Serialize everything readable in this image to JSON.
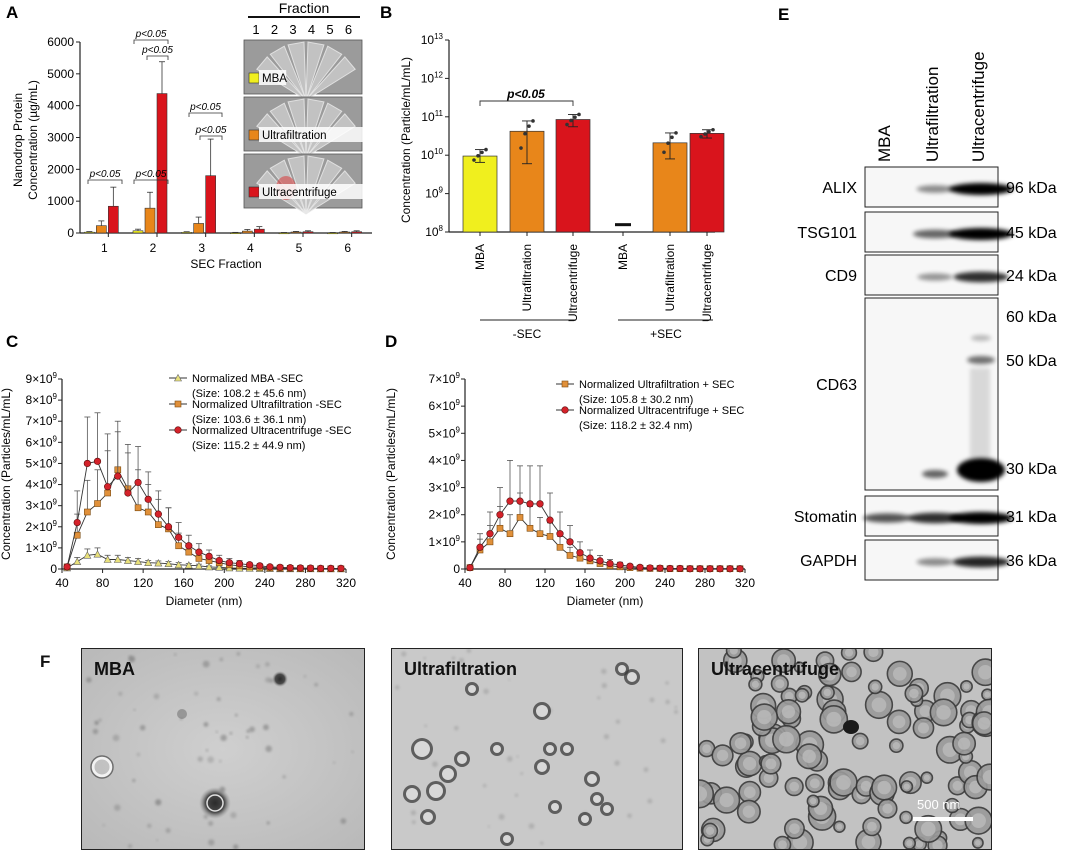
{
  "panels": {
    "A": "A",
    "B": "B",
    "C": "C",
    "D": "D",
    "E": "E",
    "F": "F"
  },
  "colors": {
    "mba": "#f0ef1e",
    "uf": "#e8861a",
    "uc": "#d9141c",
    "mba_line": "#e6e26a",
    "uf_line": "#d98a2a",
    "uc_line": "#cc1f25"
  },
  "chart_data": [
    {
      "id": "A",
      "type": "bar",
      "title": "",
      "xlabel": "SEC Fraction",
      "ylabel": "Nanodrop Protein Concentration (µg/mL)",
      "ylabel_lines": [
        "Nanodrop Protein",
        "Concentration (µg/mL)"
      ],
      "ylim": [
        0,
        6000
      ],
      "yticks": [
        "0",
        "1000",
        "2000",
        "3000",
        "4000",
        "5000",
        "6000"
      ],
      "categories": [
        "1",
        "2",
        "3",
        "4",
        "5",
        "6"
      ],
      "series": [
        {
          "name": "MBA",
          "values": [
            25,
            70,
            20,
            10,
            8,
            8
          ],
          "errors": [
            20,
            50,
            20,
            10,
            8,
            8
          ]
        },
        {
          "name": "Ultrafiltration",
          "values": [
            230,
            780,
            300,
            60,
            30,
            30
          ],
          "errors": [
            150,
            500,
            200,
            50,
            20,
            20
          ]
        },
        {
          "name": "Ultracentrifuge",
          "values": [
            840,
            4380,
            1800,
            120,
            40,
            40
          ],
          "errors": [
            600,
            1000,
            1150,
            80,
            30,
            30
          ]
        }
      ],
      "annotations": [
        "p<0.05",
        "p<0.05",
        "p<0.05",
        "p<0.05",
        "p<0.05",
        "p<0.05"
      ],
      "inset": {
        "title": "Fraction",
        "fraction_labels": [
          "1",
          "2",
          "3",
          "4",
          "5",
          "6"
        ],
        "rows": [
          "MBA",
          "Ultrafiltration",
          "Ultracentrifuge"
        ]
      }
    },
    {
      "id": "B",
      "type": "bar",
      "ylabel": "Concentration (Particle/mL/mL)",
      "scale": "log",
      "ylim": [
        100000000.0,
        10000000000000.0
      ],
      "yticks": [
        {
          "base": "10",
          "exp": "8"
        },
        {
          "base": "10",
          "exp": "9"
        },
        {
          "base": "10",
          "exp": "10"
        },
        {
          "base": "10",
          "exp": "11"
        },
        {
          "base": "10",
          "exp": "12"
        },
        {
          "base": "10",
          "exp": "13"
        }
      ],
      "categories": [
        "MBA",
        "Ultrafiltration",
        "Ultracentrifuge",
        "MBA",
        "Ultrafiltration",
        "Ultracentrifuge"
      ],
      "groups": [
        "-SEC",
        "+SEC"
      ],
      "values": [
        9500000000.0,
        42000000000.0,
        85000000000.0,
        160000000.0,
        21000000000.0,
        37000000000.0
      ],
      "errors_low": [
        6500000000.0,
        6000000000.0,
        55000000000.0,
        160000000.0,
        8000000000.0,
        28000000000.0
      ],
      "errors_high": [
        14000000000.0,
        78000000000.0,
        115000000000.0,
        160000000.0,
        38000000000.0,
        46000000000.0
      ],
      "annotations": [
        "p<0.05"
      ]
    },
    {
      "id": "C",
      "type": "line",
      "xlabel": "Diameter (nm)",
      "ylabel": "Concentration (Particles/mL/mL)",
      "xlim": [
        40,
        320
      ],
      "ylim": [
        0,
        9000000000.0
      ],
      "xticks": [
        "40",
        "80",
        "120",
        "160",
        "200",
        "240",
        "280",
        "320"
      ],
      "yticks": [
        {
          "base": "0",
          "exp": ""
        },
        {
          "base": "1×10",
          "exp": "9"
        },
        {
          "base": "2×10",
          "exp": "9"
        },
        {
          "base": "3×10",
          "exp": "9"
        },
        {
          "base": "4×10",
          "exp": "9"
        },
        {
          "base": "5×10",
          "exp": "9"
        },
        {
          "base": "6×10",
          "exp": "9"
        },
        {
          "base": "7×10",
          "exp": "9"
        },
        {
          "base": "8×10",
          "exp": "9"
        },
        {
          "base": "9×10",
          "exp": "9"
        }
      ],
      "x": [
        45,
        55,
        65,
        75,
        85,
        95,
        105,
        115,
        125,
        135,
        145,
        155,
        165,
        175,
        185,
        195,
        205,
        215,
        225,
        235,
        245,
        255,
        265,
        275,
        285,
        295,
        305,
        315
      ],
      "series": [
        {
          "name": "Normalized MBA -SEC",
          "note": "(Size: 108.2 ± 45.6 nm)",
          "values": [
            50000000.0,
            350000000.0,
            650000000.0,
            700000000.0,
            450000000.0,
            450000000.0,
            400000000.0,
            350000000.0,
            300000000.0,
            280000000.0,
            250000000.0,
            200000000.0,
            180000000.0,
            150000000.0,
            100000000.0,
            80000000.0,
            50000000.0,
            40000000.0,
            30000000.0,
            20000000.0,
            20000000.0,
            10000000.0,
            10000000.0,
            10000000.0,
            10000000.0,
            10000000.0,
            10000000.0,
            10000000.0
          ],
          "errors": [
            50000000.0,
            200000000.0,
            300000000.0,
            300000000.0,
            200000000.0,
            200000000.0,
            150000000.0,
            150000000.0,
            100000000.0,
            100000000.0,
            100000000.0,
            100000000.0,
            80000000.0,
            80000000.0,
            50000000.0,
            50000000.0,
            30000000.0,
            30000000.0,
            20000000.0,
            20000000.0,
            10000000.0,
            10000000.0,
            10000000.0,
            10000000.0,
            10000000.0,
            10000000.0,
            10000000.0,
            10000000.0
          ]
        },
        {
          "name": "Normalized Ultrafiltration -SEC",
          "note": "(Size: 103.6 ± 36.1 nm)",
          "values": [
            100000000.0,
            1600000000.0,
            2700000000.0,
            3100000000.0,
            3600000000.0,
            4700000000.0,
            3800000000.0,
            2900000000.0,
            2700000000.0,
            2100000000.0,
            1900000000.0,
            1100000000.0,
            800000000.0,
            500000000.0,
            400000000.0,
            300000000.0,
            200000000.0,
            150000000.0,
            100000000.0,
            80000000.0,
            50000000.0,
            40000000.0,
            30000000.0,
            20000000.0,
            20000000.0,
            10000000.0,
            10000000.0,
            10000000.0
          ],
          "errors": [
            100000000.0,
            1000000000.0,
            1500000000.0,
            1600000000.0,
            2000000000.0,
            2300000000.0,
            2100000000.0,
            1800000000.0,
            1300000000.0,
            1200000000.0,
            1000000000.0,
            600000000.0,
            400000000.0,
            300000000.0,
            200000000.0,
            150000000.0,
            100000000.0,
            100000000.0,
            50000000.0,
            50000000.0,
            30000000.0,
            20000000.0,
            20000000.0,
            20000000.0,
            10000000.0,
            10000000.0,
            10000000.0,
            10000000.0
          ]
        },
        {
          "name": "Normalized Ultracentrifuge -SEC",
          "note": "(Size: 115.2 ± 44.9 nm)",
          "values": [
            100000000.0,
            2200000000.0,
            5000000000.0,
            5100000000.0,
            3900000000.0,
            4400000000.0,
            3600000000.0,
            4100000000.0,
            3300000000.0,
            2600000000.0,
            2000000000.0,
            1500000000.0,
            1100000000.0,
            800000000.0,
            600000000.0,
            400000000.0,
            300000000.0,
            250000000.0,
            200000000.0,
            150000000.0,
            100000000.0,
            80000000.0,
            60000000.0,
            50000000.0,
            40000000.0,
            30000000.0,
            30000000.0,
            30000000.0
          ],
          "errors": [
            100000000.0,
            1500000000.0,
            2200000000.0,
            2300000000.0,
            2500000000.0,
            2100000000.0,
            1900000000.0,
            1700000000.0,
            1300000000.0,
            1100000000.0,
            900000000.0,
            700000000.0,
            500000000.0,
            400000000.0,
            300000000.0,
            250000000.0,
            200000000.0,
            150000000.0,
            100000000.0,
            100000000.0,
            80000000.0,
            60000000.0,
            50000000.0,
            50000000.0,
            40000000.0,
            40000000.0,
            30000000.0,
            30000000.0
          ]
        }
      ]
    },
    {
      "id": "D",
      "type": "line",
      "xlabel": "Diameter (nm)",
      "ylabel": "Concentration (Particles/mL/mL)",
      "xlim": [
        40,
        320
      ],
      "ylim": [
        0,
        7000000000.0
      ],
      "xticks": [
        "40",
        "80",
        "120",
        "160",
        "200",
        "240",
        "280",
        "320"
      ],
      "yticks": [
        {
          "base": "0",
          "exp": ""
        },
        {
          "base": "1×10",
          "exp": "9"
        },
        {
          "base": "2×10",
          "exp": "9"
        },
        {
          "base": "3×10",
          "exp": "9"
        },
        {
          "base": "4×10",
          "exp": "9"
        },
        {
          "base": "5×10",
          "exp": "9"
        },
        {
          "base": "6×10",
          "exp": "9"
        },
        {
          "base": "7×10",
          "exp": "9"
        }
      ],
      "x": [
        45,
        55,
        65,
        75,
        85,
        95,
        105,
        115,
        125,
        135,
        145,
        155,
        165,
        175,
        185,
        195,
        205,
        215,
        225,
        235,
        245,
        255,
        265,
        275,
        285,
        295,
        305,
        315
      ],
      "series": [
        {
          "name": "Normalized Ultrafiltration + SEC",
          "note": "(Size: 105.8 ± 30.2 nm)",
          "values": [
            50000000.0,
            700000000.0,
            1000000000.0,
            1500000000.0,
            1300000000.0,
            1900000000.0,
            1500000000.0,
            1300000000.0,
            1200000000.0,
            800000000.0,
            500000000.0,
            400000000.0,
            300000000.0,
            200000000.0,
            120000000.0,
            80000000.0,
            50000000.0,
            30000000.0,
            20000000.0,
            20000000.0,
            10000000.0,
            10000000.0,
            10000000.0,
            10000000.0,
            10000000.0,
            10000000.0,
            10000000.0,
            10000000.0
          ],
          "errors": [
            50000000.0,
            400000000.0,
            600000000.0,
            800000000.0,
            700000000.0,
            900000000.0,
            800000000.0,
            600000000.0,
            500000000.0,
            400000000.0,
            300000000.0,
            200000000.0,
            150000000.0,
            100000000.0,
            80000000.0,
            50000000.0,
            30000000.0,
            20000000.0,
            20000000.0,
            10000000.0,
            10000000.0,
            10000000.0,
            10000000.0,
            10000000.0,
            10000000.0,
            10000000.0,
            10000000.0,
            10000000.0
          ]
        },
        {
          "name": "Normalized Ultracentrifuge + SEC",
          "note": "(Size: 118.2 ± 32.4 nm)",
          "values": [
            50000000.0,
            800000000.0,
            1300000000.0,
            2000000000.0,
            2500000000.0,
            2500000000.0,
            2400000000.0,
            2400000000.0,
            1800000000.0,
            1300000000.0,
            1000000000.0,
            600000000.0,
            400000000.0,
            300000000.0,
            200000000.0,
            150000000.0,
            100000000.0,
            60000000.0,
            40000000.0,
            30000000.0,
            20000000.0,
            20000000.0,
            10000000.0,
            10000000.0,
            10000000.0,
            10000000.0,
            10000000.0,
            10000000.0
          ],
          "errors": [
            50000000.0,
            500000000.0,
            800000000.0,
            1000000000.0,
            1500000000.0,
            1300000000.0,
            1400000000.0,
            1400000000.0,
            1000000000.0,
            800000000.0,
            600000000.0,
            400000000.0,
            300000000.0,
            200000000.0,
            150000000.0,
            100000000.0,
            80000000.0,
            50000000.0,
            30000000.0,
            20000000.0,
            20000000.0,
            20000000.0,
            10000000.0,
            10000000.0,
            10000000.0,
            10000000.0,
            10000000.0,
            10000000.0
          ]
        }
      ]
    },
    {
      "id": "E",
      "type": "table",
      "lanes": [
        "MBA",
        "Ultrafiltration",
        "Ultracentrifuge"
      ],
      "rows": [
        {
          "label": "ALIX",
          "kda": [
            "96 kDa"
          ]
        },
        {
          "label": "TSG101",
          "kda": [
            "45 kDa"
          ]
        },
        {
          "label": "CD9",
          "kda": [
            "24 kDa"
          ]
        },
        {
          "label": "CD63",
          "kda": [
            "60 kDa",
            "50 kDa",
            "30 kDa"
          ]
        },
        {
          "label": "Stomatin",
          "kda": [
            "31 kDa"
          ]
        },
        {
          "label": "GAPDH",
          "kda": [
            "36 kDa"
          ]
        }
      ]
    }
  ],
  "micrographs": {
    "labels": [
      "MBA",
      "Ultrafiltration",
      "Ultracentrifuge"
    ],
    "scale_bar": "500 nm"
  }
}
